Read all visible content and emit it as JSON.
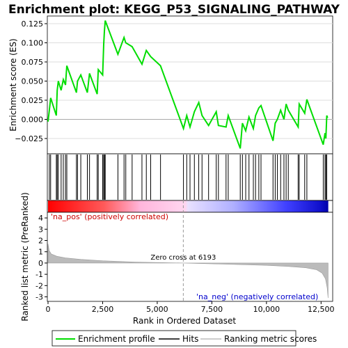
{
  "chart_data": {
    "type": "line",
    "title": "Enrichment plot: KEGG_P53_SIGNALING_PATHWAY",
    "top_panel": {
      "ylabel": "Enrichment score (ES)",
      "ylim": [
        -0.045,
        0.135
      ],
      "yticks": [
        -0.025,
        0.0,
        0.025,
        0.05,
        0.075,
        0.1,
        0.125
      ],
      "ytick_labels": [
        "−0.025",
        "0.000",
        "0.025",
        "0.050",
        "0.075",
        "0.100",
        "0.125"
      ],
      "color": "#00dd00",
      "series": [
        {
          "x": [
            0,
            60,
            120,
            380,
            420,
            470,
            600,
            700,
            800,
            860,
            1300,
            1350,
            1500,
            1800,
            1900,
            2250,
            2300,
            2500,
            2550,
            2580,
            2620,
            3200,
            3480,
            3560,
            3850,
            4300,
            4500,
            4700,
            5150,
            6200,
            6350,
            6500,
            6700,
            6900,
            7050,
            7350,
            7700,
            7800,
            8150,
            8250,
            8800,
            8900,
            9050,
            9200,
            9400,
            9500,
            9650,
            9750,
            10300,
            10400,
            10500,
            10650,
            10800,
            10900,
            11000,
            11450,
            11500,
            11750,
            11850,
            12600,
            12680,
            12720,
            12760,
            12800
          ],
          "y": [
            -0.003,
            0.012,
            0.028,
            0.005,
            0.038,
            0.05,
            0.038,
            0.052,
            0.045,
            0.07,
            0.035,
            0.05,
            0.058,
            0.035,
            0.06,
            0.033,
            0.065,
            0.058,
            0.098,
            0.115,
            0.129,
            0.085,
            0.107,
            0.1,
            0.095,
            0.072,
            0.09,
            0.082,
            0.07,
            -0.012,
            0.005,
            -0.01,
            0.01,
            0.022,
            0.005,
            -0.008,
            0.01,
            -0.008,
            -0.01,
            0.005,
            -0.038,
            -0.005,
            -0.015,
            0.003,
            -0.012,
            0.005,
            0.015,
            0.018,
            -0.028,
            -0.005,
            0.0,
            0.012,
            0.0,
            0.02,
            0.012,
            -0.01,
            0.02,
            0.008,
            0.026,
            -0.033,
            -0.018,
            -0.025,
            0.005,
            0.002
          ]
        }
      ]
    },
    "hits_panel": {
      "hit_ranks": [
        60,
        120,
        380,
        420,
        470,
        600,
        700,
        800,
        860,
        1300,
        1350,
        1500,
        1800,
        1900,
        2250,
        2300,
        2500,
        2550,
        2580,
        2620,
        3200,
        3480,
        3560,
        3850,
        4300,
        4500,
        4700,
        5150,
        6200,
        6350,
        6500,
        6700,
        6900,
        7050,
        7350,
        7700,
        7800,
        8150,
        8250,
        8800,
        8900,
        9050,
        9200,
        9400,
        9500,
        9650,
        9750,
        10300,
        10400,
        10500,
        10650,
        10800,
        10900,
        11000,
        11450,
        11500,
        11750,
        11850,
        12600,
        12680,
        12720,
        12760
      ]
    },
    "bottom_panel": {
      "ylabel": "Ranked list metric (PreRanked)",
      "xlabel": "Rank in Ordered Dataset",
      "xlim": [
        0,
        13000
      ],
      "ylim": [
        -3.4,
        4.5
      ],
      "xticks": [
        0,
        2500,
        5000,
        7500,
        10000,
        12500
      ],
      "xtick_labels": [
        "0",
        "2,500",
        "5,000",
        "7,500",
        "10,000",
        "12,500"
      ],
      "yticks": [
        -3,
        -2,
        -1,
        0,
        1,
        2,
        3,
        4
      ],
      "ytick_labels": [
        "-3",
        "-2",
        "-1",
        "0",
        "1",
        "2",
        "3",
        "4"
      ],
      "metric_curve": {
        "x": [
          0,
          50,
          150,
          400,
          800,
          1500,
          2500,
          4000,
          6193,
          8000,
          10000,
          11000,
          11800,
          12300,
          12550,
          12700,
          12780,
          12820
        ],
        "y": [
          1.7,
          1.1,
          0.8,
          0.6,
          0.45,
          0.32,
          0.2,
          0.08,
          0.0,
          -0.1,
          -0.2,
          -0.3,
          -0.42,
          -0.6,
          -0.9,
          -1.4,
          -2.2,
          -3.1
        ]
      },
      "zero_cross_rank": 6193,
      "annotations": {
        "zero_cross": "Zero cross at 6193",
        "pos": "'na_pos' (positively correlated)",
        "neg": "'na_neg' (negatively correlated)"
      }
    },
    "legend": {
      "items": [
        "Enrichment profile",
        "Hits",
        "Ranking metric scores"
      ],
      "colors": [
        "#00dd00",
        "#000000",
        "#bbbbbb"
      ]
    }
  }
}
